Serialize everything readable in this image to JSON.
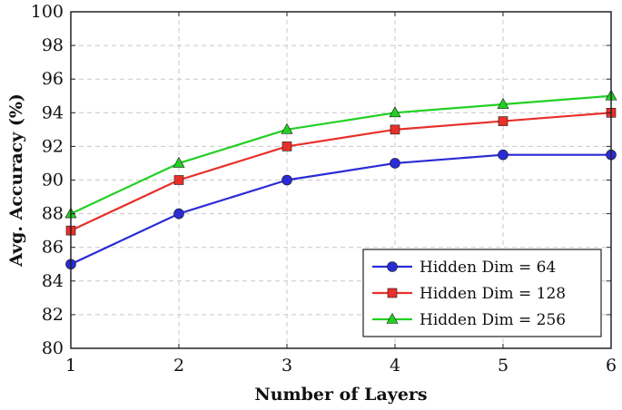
{
  "chart_data": {
    "type": "line",
    "xlabel": "Number of Layers",
    "ylabel": "Avg. Accuracy (%)",
    "x": [
      1,
      2,
      3,
      4,
      5,
      6
    ],
    "xlim": [
      1,
      6
    ],
    "ylim": [
      80,
      100
    ],
    "xticks": [
      "1",
      "2",
      "3",
      "4",
      "5",
      "6"
    ],
    "yticks": [
      "80",
      "82",
      "84",
      "86",
      "88",
      "90",
      "92",
      "94",
      "96",
      "98",
      "100"
    ],
    "grid": true,
    "legend_position": "bottom-right",
    "series": [
      {
        "name": "Hidden Dim = 64",
        "values": [
          85,
          88,
          90,
          91,
          91.5,
          91.5
        ],
        "color": "#2b2bd6",
        "marker": "circle"
      },
      {
        "name": "Hidden Dim = 128",
        "values": [
          87,
          90,
          92,
          93,
          93.5,
          94
        ],
        "color": "#e8302a",
        "marker": "square"
      },
      {
        "name": "Hidden Dim = 256",
        "values": [
          88,
          91,
          93,
          94,
          94.5,
          95
        ],
        "color": "#22d022",
        "marker": "triangle"
      }
    ]
  }
}
